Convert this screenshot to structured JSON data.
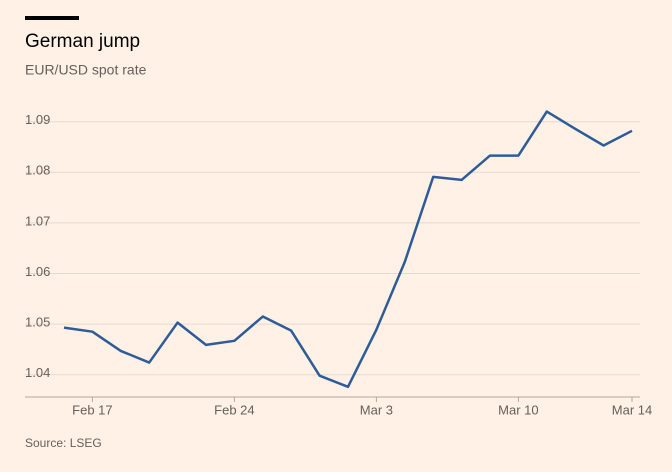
{
  "chart_data": {
    "type": "line",
    "title": "German jump",
    "subtitle": "EUR/USD spot rate",
    "source": "Source: LSEG",
    "categories": [
      null,
      "Feb 17",
      null,
      null,
      null,
      null,
      "Feb 24",
      null,
      null,
      null,
      null,
      "Mar 3",
      null,
      null,
      null,
      null,
      "Mar 10",
      null,
      null,
      null,
      "Mar 14"
    ],
    "series": [
      {
        "name": "EUR/USD",
        "color": "#2e5c99",
        "values": [
          1.0493,
          1.0485,
          1.0447,
          1.0424,
          1.0503,
          1.0459,
          1.0467,
          1.0515,
          1.0487,
          1.0398,
          1.0376,
          1.0489,
          1.0623,
          1.0791,
          1.0785,
          1.0833,
          1.0833,
          1.092,
          1.0886,
          1.0853,
          1.0882
        ]
      }
    ],
    "ylim": [
      1.035,
      1.0935
    ],
    "yticks": [
      1.04,
      1.05,
      1.06,
      1.07,
      1.08,
      1.09
    ],
    "grid": true
  }
}
